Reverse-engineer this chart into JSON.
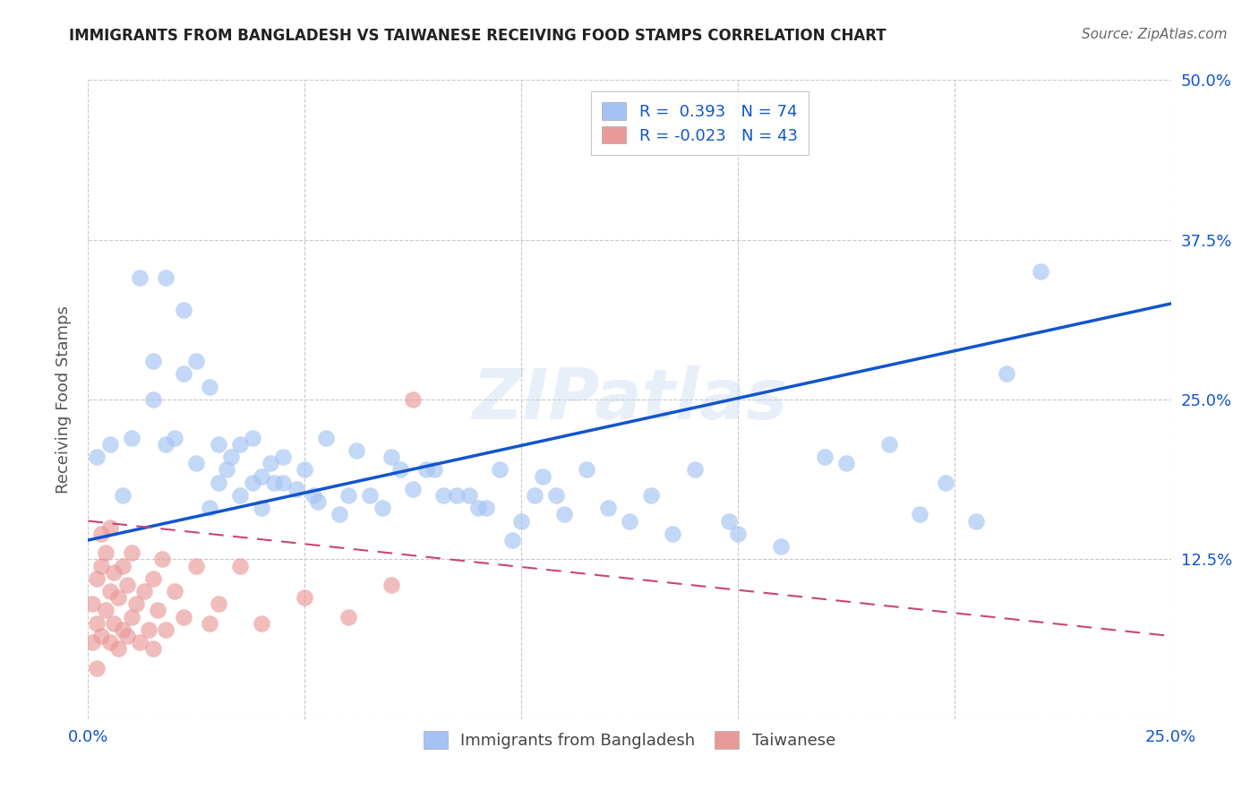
{
  "title": "IMMIGRANTS FROM BANGLADESH VS TAIWANESE RECEIVING FOOD STAMPS CORRELATION CHART",
  "source": "Source: ZipAtlas.com",
  "ylabel": "Receiving Food Stamps",
  "xmin": 0.0,
  "xmax": 0.25,
  "ymin": 0.0,
  "ymax": 0.5,
  "xticks": [
    0.0,
    0.05,
    0.1,
    0.15,
    0.2,
    0.25
  ],
  "yticks": [
    0.0,
    0.125,
    0.25,
    0.375,
    0.5
  ],
  "blue_color": "#a4c2f4",
  "pink_color": "#ea9999",
  "blue_line_color": "#1155cc",
  "pink_line_color": "#cc4477",
  "blue_R": 0.393,
  "blue_N": 74,
  "pink_R": -0.023,
  "pink_N": 43,
  "blue_scatter_x": [
    0.002,
    0.005,
    0.008,
    0.01,
    0.012,
    0.015,
    0.015,
    0.018,
    0.018,
    0.02,
    0.022,
    0.022,
    0.025,
    0.025,
    0.028,
    0.028,
    0.03,
    0.03,
    0.032,
    0.033,
    0.035,
    0.035,
    0.038,
    0.038,
    0.04,
    0.04,
    0.042,
    0.043,
    0.045,
    0.045,
    0.048,
    0.05,
    0.052,
    0.053,
    0.055,
    0.058,
    0.06,
    0.062,
    0.065,
    0.068,
    0.07,
    0.072,
    0.075,
    0.078,
    0.08,
    0.082,
    0.085,
    0.088,
    0.09,
    0.092,
    0.095,
    0.098,
    0.1,
    0.103,
    0.105,
    0.108,
    0.11,
    0.115,
    0.12,
    0.125,
    0.13,
    0.135,
    0.14,
    0.148,
    0.15,
    0.16,
    0.17,
    0.175,
    0.185,
    0.192,
    0.198,
    0.205,
    0.212,
    0.22
  ],
  "blue_scatter_y": [
    0.205,
    0.215,
    0.175,
    0.22,
    0.345,
    0.28,
    0.25,
    0.345,
    0.215,
    0.22,
    0.27,
    0.32,
    0.2,
    0.28,
    0.165,
    0.26,
    0.185,
    0.215,
    0.195,
    0.205,
    0.175,
    0.215,
    0.185,
    0.22,
    0.165,
    0.19,
    0.2,
    0.185,
    0.185,
    0.205,
    0.18,
    0.195,
    0.175,
    0.17,
    0.22,
    0.16,
    0.175,
    0.21,
    0.175,
    0.165,
    0.205,
    0.195,
    0.18,
    0.195,
    0.195,
    0.175,
    0.175,
    0.175,
    0.165,
    0.165,
    0.195,
    0.14,
    0.155,
    0.175,
    0.19,
    0.175,
    0.16,
    0.195,
    0.165,
    0.155,
    0.175,
    0.145,
    0.195,
    0.155,
    0.145,
    0.135,
    0.205,
    0.2,
    0.215,
    0.16,
    0.185,
    0.155,
    0.27,
    0.35
  ],
  "pink_scatter_x": [
    0.001,
    0.001,
    0.002,
    0.002,
    0.002,
    0.003,
    0.003,
    0.003,
    0.004,
    0.004,
    0.005,
    0.005,
    0.005,
    0.006,
    0.006,
    0.007,
    0.007,
    0.008,
    0.008,
    0.009,
    0.009,
    0.01,
    0.01,
    0.011,
    0.012,
    0.013,
    0.014,
    0.015,
    0.015,
    0.016,
    0.017,
    0.018,
    0.02,
    0.022,
    0.025,
    0.028,
    0.03,
    0.035,
    0.04,
    0.05,
    0.06,
    0.07,
    0.075
  ],
  "pink_scatter_y": [
    0.06,
    0.09,
    0.04,
    0.075,
    0.11,
    0.065,
    0.12,
    0.145,
    0.085,
    0.13,
    0.06,
    0.1,
    0.15,
    0.075,
    0.115,
    0.055,
    0.095,
    0.07,
    0.12,
    0.065,
    0.105,
    0.08,
    0.13,
    0.09,
    0.06,
    0.1,
    0.07,
    0.055,
    0.11,
    0.085,
    0.125,
    0.07,
    0.1,
    0.08,
    0.12,
    0.075,
    0.09,
    0.12,
    0.075,
    0.095,
    0.08,
    0.105,
    0.25
  ],
  "watermark": "ZIPatlas",
  "background_color": "#ffffff",
  "grid_color": "#c8c8c8"
}
